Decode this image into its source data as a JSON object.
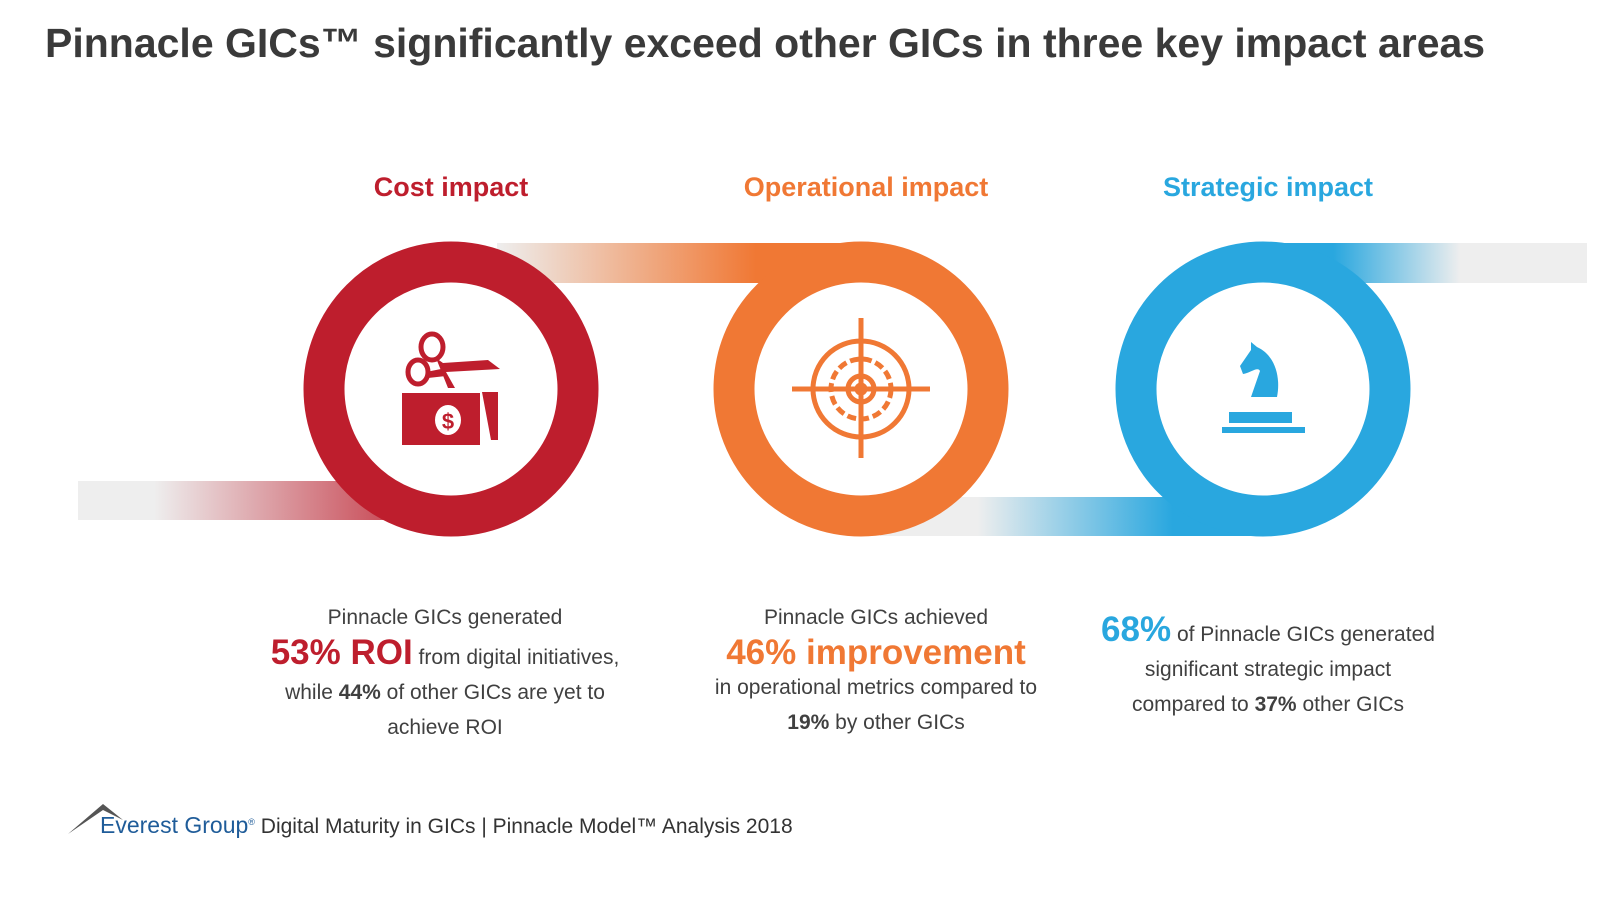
{
  "title": "Pinnacle GICs™ significantly exceed other GICs in three key impact areas",
  "colors": {
    "cost": "#be1e2d",
    "operational": "#f07834",
    "strategic": "#29a7df"
  },
  "sections": [
    {
      "heading": "Cost impact",
      "icon": "scissors-cutting-money-icon",
      "line1": "Pinnacle GICs generated",
      "highlight": "53% ROI",
      "after_highlight": " from digital initiatives,",
      "line3_pre": "while ",
      "line3_bold": "44%",
      "line3_post": " of other GICs are yet to",
      "line4": "achieve ROI"
    },
    {
      "heading": "Operational impact",
      "icon": "target-gear-icon",
      "line1": "Pinnacle GICs achieved",
      "highlight": "46% improvement",
      "line3": "in operational metrics compared to",
      "line4_bold": "19%",
      "line4_post": " by other GICs"
    },
    {
      "heading": "Strategic impact",
      "icon": "chess-knight-icon",
      "highlight": "68%",
      "after_highlight": " of Pinnacle GICs generated",
      "line2": "significant strategic impact",
      "line3_pre": "compared to ",
      "line3_bold": "37%",
      "line3_post": " other GICs"
    }
  ],
  "footer": {
    "logo": "Everest Group",
    "reg": "®",
    "text": " Digital Maturity in GICs | Pinnacle Model™ Analysis 2018"
  }
}
